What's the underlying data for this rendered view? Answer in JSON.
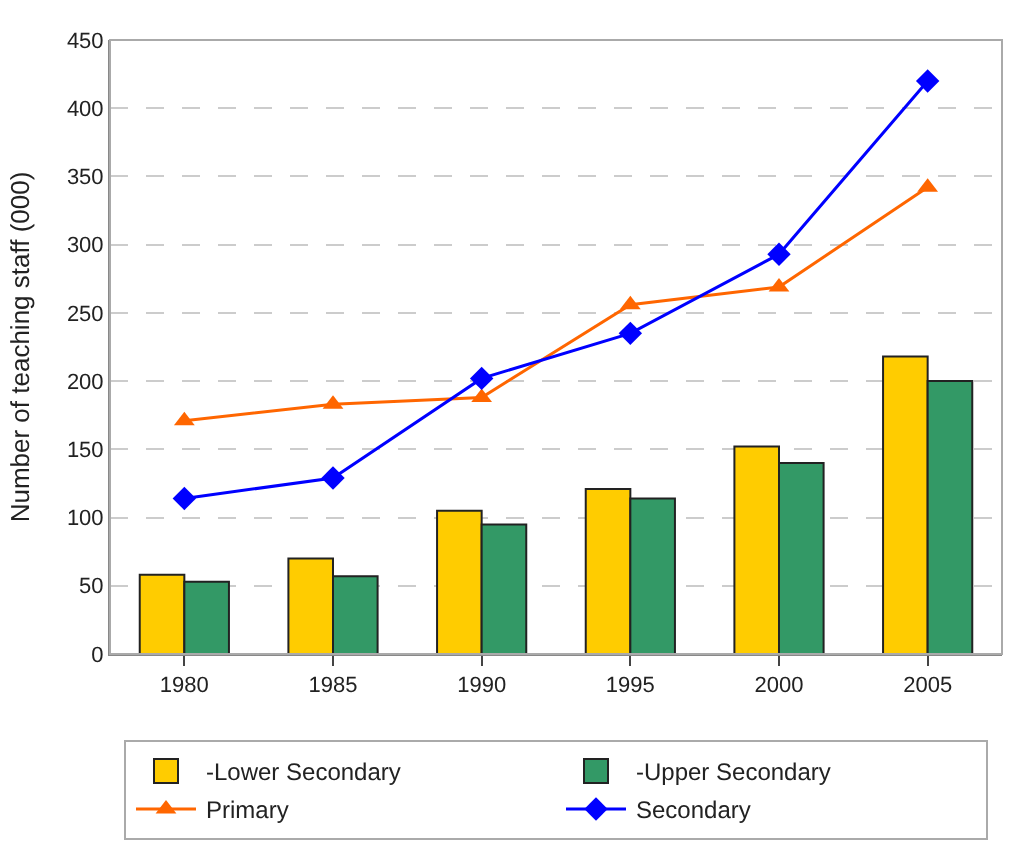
{
  "chart_data": {
    "type": "bar",
    "ylabel": "Number of teaching staff (000)",
    "categories": [
      "1980",
      "1985",
      "1990",
      "1995",
      "2000",
      "2005"
    ],
    "series": [
      {
        "name": "-Lower Secondary",
        "color": "#ffcc00",
        "values": [
          58,
          70,
          105,
          121,
          152,
          218
        ]
      },
      {
        "name": "-Upper Secondary",
        "color": "#339966",
        "values": [
          53,
          57,
          95,
          114,
          140,
          200
        ]
      },
      {
        "name": "Primary",
        "type": "line",
        "color": "#ff6600",
        "marker": "triangle",
        "values": [
          171,
          183,
          188,
          256,
          269,
          342
        ]
      },
      {
        "name": "Secondary",
        "type": "line",
        "color": "#0000ff",
        "marker": "diamond",
        "values": [
          114,
          129,
          202,
          235,
          293,
          420
        ]
      }
    ],
    "ylim": [
      0,
      450
    ],
    "yticks": [
      0,
      50,
      100,
      150,
      200,
      250,
      300,
      350,
      400,
      450
    ],
    "grid": "y",
    "legend": "bottom"
  }
}
